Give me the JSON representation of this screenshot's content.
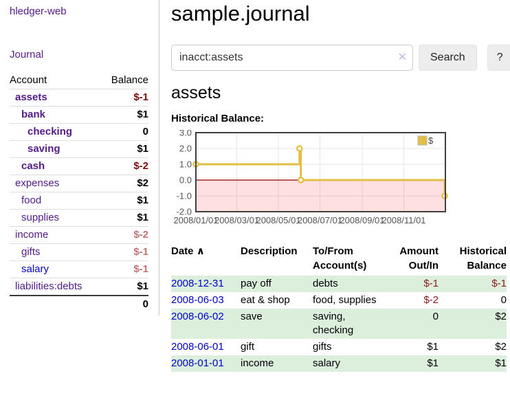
{
  "app": {
    "title": "hledger-web"
  },
  "sidebar": {
    "journal_link": "Journal",
    "accounts_table": {
      "headers": [
        "Account",
        "Balance"
      ],
      "rows": [
        {
          "name": "assets",
          "indent": 1,
          "bold": true,
          "link_color": "purple",
          "balance": "$-1",
          "balance_style": "neg-strong"
        },
        {
          "name": "bank",
          "indent": 2,
          "bold": true,
          "link_color": "purple",
          "balance": "$1",
          "balance_style": "pos"
        },
        {
          "name": "checking",
          "indent": 3,
          "bold": true,
          "link_color": "purple",
          "balance": "0",
          "balance_style": "pos"
        },
        {
          "name": "saving",
          "indent": 3,
          "bold": true,
          "link_color": "purple",
          "balance": "$1",
          "balance_style": "pos"
        },
        {
          "name": "cash",
          "indent": 2,
          "bold": true,
          "link_color": "purple",
          "balance": "$-2",
          "balance_style": "neg-strong"
        },
        {
          "name": "expenses",
          "indent": 1,
          "bold": false,
          "link_color": "purple",
          "balance": "$2",
          "balance_style": "pos"
        },
        {
          "name": "food",
          "indent": 2,
          "bold": false,
          "link_color": "purple",
          "balance": "$1",
          "balance_style": "pos"
        },
        {
          "name": "supplies",
          "indent": 2,
          "bold": false,
          "link_color": "purple",
          "balance": "$1",
          "balance_style": "pos"
        },
        {
          "name": "income",
          "indent": 1,
          "bold": false,
          "link_color": "purple",
          "balance": "$-2",
          "balance_style": "neg-soft"
        },
        {
          "name": "gifts",
          "indent": 2,
          "bold": false,
          "link_color": "purple",
          "balance": "$-1",
          "balance_style": "neg-soft"
        },
        {
          "name": "salary",
          "indent": 2,
          "bold": false,
          "link_color": "blue",
          "balance": "$-1",
          "balance_style": "neg-soft"
        },
        {
          "name": "liabilities:debts",
          "indent": 1,
          "bold": false,
          "link_color": "purple",
          "balance": "$1",
          "balance_style": "pos"
        }
      ],
      "total": "0"
    }
  },
  "header": {
    "title": "sample.journal"
  },
  "search": {
    "value": "inacct:assets",
    "clear_icon": "✕",
    "button_label": "Search",
    "help_label": "?"
  },
  "account_page": {
    "heading": "assets",
    "chart_label": "Historical Balance:"
  },
  "chart_data": {
    "type": "line",
    "style": "step",
    "title": "Historical Balance",
    "series": [
      {
        "name": "$",
        "color": "#e3bd44",
        "points": [
          [
            "2008-01-01",
            1
          ],
          [
            "2008-06-01",
            2
          ],
          [
            "2008-06-03",
            0
          ],
          [
            "2008-12-31",
            -1
          ]
        ]
      }
    ],
    "x_range": [
      "2008-01-01",
      "2009-01-01"
    ],
    "x_ticks": [
      "2008/01/01",
      "2008/03/01",
      "2008/05/01",
      "2008/07/01",
      "2008/09/01",
      "2008/11/01"
    ],
    "y_ticks": [
      3.0,
      2.0,
      1.0,
      0.0,
      -1.0,
      -2.0
    ],
    "ylim": [
      -2,
      3
    ],
    "grid": true,
    "negative_fill": "rgba(255,0,0,0.12)",
    "zero_line_color": "#8b0000",
    "border_color": "#3f3f3f",
    "grid_color": "#e6e6e6",
    "tick_label_color": "#545454",
    "legend": {
      "label": "$",
      "position": "top-right"
    }
  },
  "register": {
    "columns": [
      {
        "lines": [
          "Date"
        ],
        "sort": "∧",
        "align": "left"
      },
      {
        "lines": [
          "Description"
        ],
        "align": "left"
      },
      {
        "lines": [
          "To/From",
          "Account(s)"
        ],
        "align": "left"
      },
      {
        "lines": [
          "Amount",
          "Out/In"
        ],
        "align": "right"
      },
      {
        "lines": [
          "Historical",
          "Balance"
        ],
        "align": "right"
      }
    ],
    "rows": [
      {
        "date": "2008-12-31",
        "description": "pay off",
        "accounts_lines": [
          "debts"
        ],
        "amount": "$-1",
        "amount_neg": true,
        "balance": "$-1",
        "balance_neg": true,
        "striped": true
      },
      {
        "date": "2008-06-03",
        "description": "eat & shop",
        "accounts_lines": [
          "food, supplies"
        ],
        "amount": "$-2",
        "amount_neg": true,
        "balance": "0",
        "balance_neg": false,
        "striped": false
      },
      {
        "date": "2008-06-02",
        "description": "save",
        "accounts_lines": [
          "saving,",
          "checking"
        ],
        "amount": "0",
        "amount_neg": false,
        "balance": "$2",
        "balance_neg": false,
        "striped": true
      },
      {
        "date": "2008-06-01",
        "description": "gift",
        "accounts_lines": [
          "gifts"
        ],
        "amount": "$1",
        "amount_neg": false,
        "balance": "$2",
        "balance_neg": false,
        "striped": false
      },
      {
        "date": "2008-01-01",
        "description": "income",
        "accounts_lines": [
          "salary"
        ],
        "amount": "$1",
        "amount_neg": false,
        "balance": "$1",
        "balance_neg": false,
        "striped": true
      }
    ]
  }
}
